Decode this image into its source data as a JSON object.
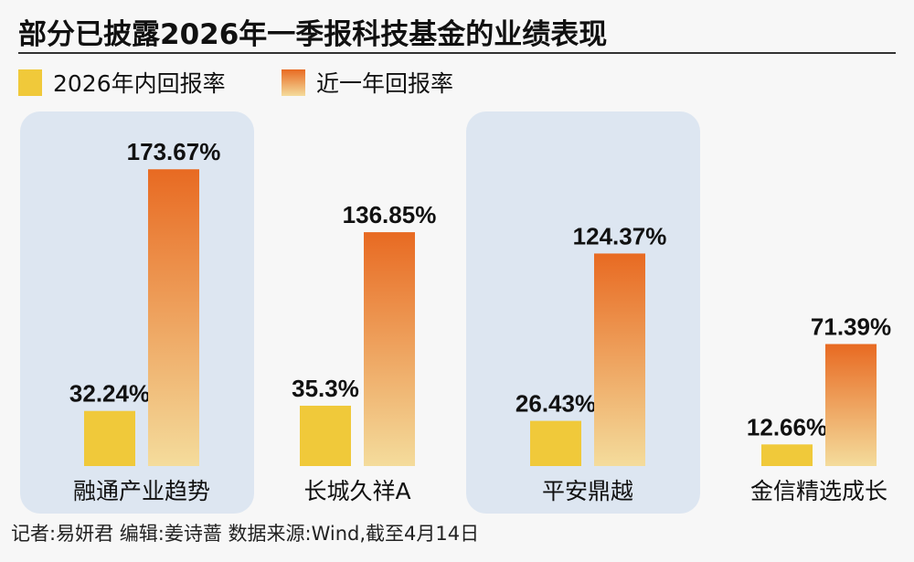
{
  "title": "部分已披露2026年一季报科技基金的业绩表现",
  "footer": "记者:易妍君  编辑:姜诗蔷  数据来源:Wind,截至4月14日",
  "colors": {
    "ytd": "#f0c93a",
    "year_top": "#e86a22",
    "year_bottom": "#f4dc9c",
    "panel": "#dde6f1"
  },
  "chart_data": {
    "type": "bar",
    "categories": [
      "融通产业趋势",
      "长城久祥A",
      "平安鼎越",
      "金信精选成长"
    ],
    "series": [
      {
        "name": "2026年内回报率",
        "values": [
          32.24,
          35.3,
          26.43,
          12.66
        ],
        "labels": [
          "32.24%",
          "35.3%",
          "26.43%",
          "12.66%"
        ]
      },
      {
        "name": "近一年回报率",
        "values": [
          173.67,
          136.85,
          124.37,
          71.39
        ],
        "labels": [
          "173.67%",
          "136.85%",
          "124.37%",
          "71.39%"
        ]
      }
    ],
    "highlighted_categories": [
      0,
      2
    ],
    "legend": "top-left",
    "grid": false
  }
}
